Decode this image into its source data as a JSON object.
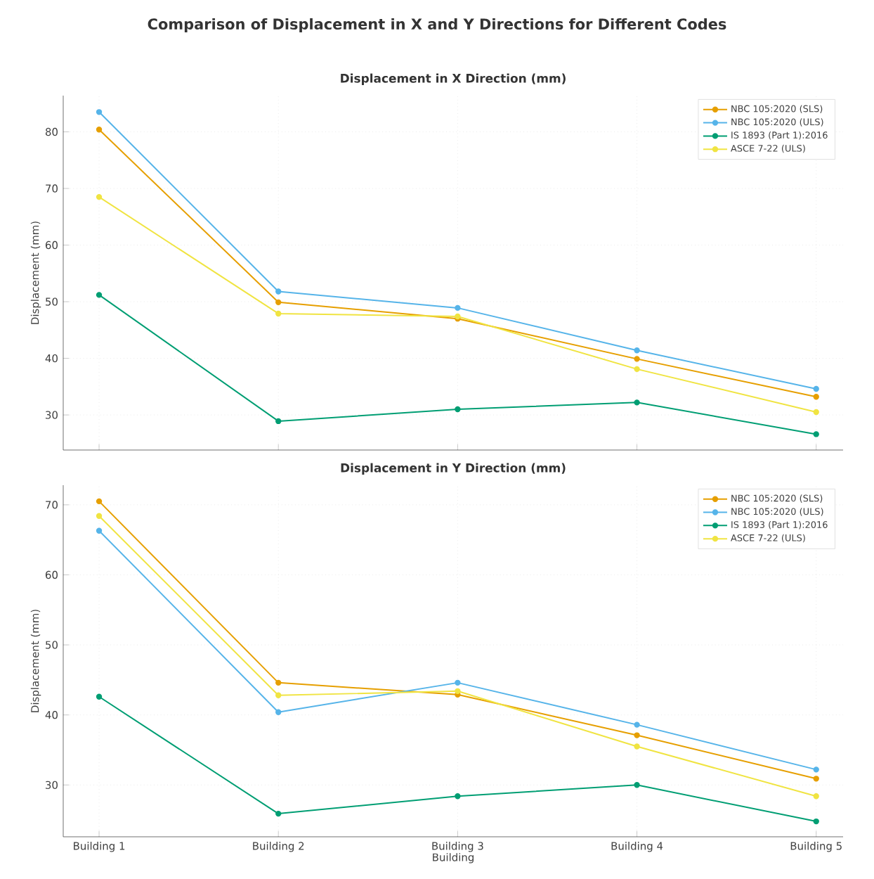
{
  "chart_data": [
    {
      "type": "line",
      "title": "Comparison of Displacement in X and Y Directions for Different Codes",
      "subtitle": "Displacement in X Direction (mm)",
      "ylabel": "Displacement (mm)",
      "categories": [
        null,
        null,
        null,
        null,
        null
      ],
      "series": [
        {
          "name": "NBC 105:2020 (SLS)",
          "color": "#e69f00",
          "values": [
            80.4,
            49.9,
            47.0,
            39.9,
            33.2
          ]
        },
        {
          "name": "NBC 105:2020 (ULS)",
          "color": "#56b4e9",
          "values": [
            83.5,
            51.8,
            48.9,
            41.4,
            34.6
          ]
        },
        {
          "name": "IS 1893 (Part 1):2016",
          "color": "#009e73",
          "values": [
            51.2,
            28.9,
            31.0,
            32.2,
            26.6
          ]
        },
        {
          "name": "ASCE 7-22 (ULS)",
          "color": "#f0e442",
          "values": [
            68.5,
            47.9,
            47.4,
            38.1,
            30.5
          ]
        }
      ],
      "ylim": [
        23.8,
        86.4
      ],
      "yticks": [
        30,
        40,
        50,
        60,
        70,
        80
      ],
      "grid": true,
      "legend": "top right",
      "marker": "circle",
      "line_style": "solid",
      "tick_labels": "y"
    },
    {
      "type": "line",
      "title": "Displacement in Y Direction (mm)",
      "xlabel": "Building",
      "ylabel": "Displacement (mm)",
      "categories": [
        "Building 1",
        "Building 2",
        "Building 3",
        "Building 4",
        "Building 5"
      ],
      "series": [
        {
          "name": "NBC 105:2020 (SLS)",
          "color": "#e69f00",
          "values": [
            70.5,
            44.6,
            42.9,
            37.1,
            30.9
          ]
        },
        {
          "name": "NBC 105:2020 (ULS)",
          "color": "#56b4e9",
          "values": [
            66.3,
            40.4,
            44.6,
            38.6,
            32.2
          ]
        },
        {
          "name": "IS 1893 (Part 1):2016",
          "color": "#009e73",
          "values": [
            42.6,
            25.9,
            28.4,
            30.0,
            24.8
          ]
        },
        {
          "name": "ASCE 7-22 (ULS)",
          "color": "#f0e442",
          "values": [
            68.4,
            42.8,
            43.4,
            35.5,
            28.4
          ]
        }
      ],
      "ylim": [
        22.6,
        72.8
      ],
      "yticks": [
        30,
        40,
        50,
        60,
        70
      ],
      "grid": true,
      "legend": "top right",
      "marker": "circle",
      "line_style": "solid"
    }
  ]
}
